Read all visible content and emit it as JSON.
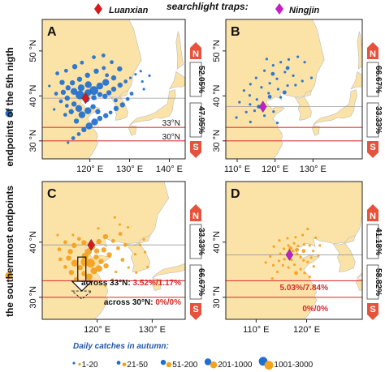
{
  "header": {
    "title": "searchlight traps:",
    "trap_a": "Luanxian",
    "trap_b": "Ningjin"
  },
  "colors": {
    "land": "#fbe3a8",
    "sea": "#ffffff",
    "blue": "#1f6fd0",
    "orange": "#f4a11c",
    "red_marker": "#d7191c",
    "purple_marker": "#c21fc6",
    "line_red": "#e03a3a",
    "n_box": "#e5533d",
    "grey_line": "#9a9a9a",
    "panel_label_bg": "#ececec"
  },
  "row_labels": {
    "top": "endpoints of the 5th nigth",
    "bottom": "the southernmost endpoints"
  },
  "legend": {
    "title": "Daily catches in autumn:",
    "items": [
      "1-20",
      "21-50",
      "51-200",
      "201-1000",
      "1001-3000"
    ]
  },
  "chart_data": [
    {
      "type": "scatter",
      "panel": "A",
      "trap": "Luanxian",
      "trap_pos": [
        118.9,
        39.5
      ],
      "xlim": [
        108,
        144
      ],
      "ylim": [
        26,
        57
      ],
      "x_ticks": [
        120,
        130,
        140
      ],
      "x_tick_labels": [
        "120° E",
        "130° E",
        "140° E"
      ],
      "y_ticks": [
        30,
        40,
        50
      ],
      "y_tick_labels": [
        "30 °N",
        "40 °N",
        "50 °N"
      ],
      "ref_lines": [
        {
          "lat": 33,
          "label": "33°N"
        },
        {
          "lat": 30,
          "label": "30°N"
        }
      ],
      "n_pct": "52.05%",
      "s_pct": "47.95%",
      "marker_color": "blue",
      "points": [
        [
          119.1,
          39.3,
          4
        ],
        [
          117.5,
          40.2,
          5
        ],
        [
          116,
          41,
          4
        ],
        [
          114.5,
          41.8,
          3
        ],
        [
          113,
          43,
          3
        ],
        [
          111.8,
          45,
          2
        ],
        [
          114,
          45.6,
          2
        ],
        [
          116.2,
          46.5,
          3
        ],
        [
          118,
          47.4,
          2
        ],
        [
          121,
          48.6,
          2
        ],
        [
          123.4,
          49,
          2
        ],
        [
          125.5,
          47.5,
          2
        ],
        [
          127.5,
          46,
          3
        ],
        [
          126,
          44,
          3
        ],
        [
          124,
          43,
          4
        ],
        [
          122.5,
          42.2,
          4
        ],
        [
          121,
          41.2,
          5
        ],
        [
          119.5,
          40.7,
          4
        ],
        [
          121,
          39.6,
          3
        ],
        [
          122.5,
          40.3,
          3
        ],
        [
          123.8,
          39.9,
          3
        ],
        [
          124.8,
          40.7,
          3
        ],
        [
          126,
          41.5,
          3
        ],
        [
          127.6,
          42.4,
          3
        ],
        [
          129,
          43.2,
          2
        ],
        [
          130.2,
          44,
          1
        ],
        [
          131.5,
          44.8,
          1
        ],
        [
          132.8,
          45.5,
          1
        ],
        [
          133.2,
          43.2,
          1
        ],
        [
          130.5,
          40.5,
          2
        ],
        [
          129.5,
          39.3,
          2
        ],
        [
          128.2,
          38,
          3
        ],
        [
          126.6,
          37.2,
          3
        ],
        [
          125.2,
          36.3,
          2
        ],
        [
          124,
          35.6,
          3
        ],
        [
          122.5,
          35,
          3
        ],
        [
          121.2,
          34.2,
          4
        ],
        [
          119.8,
          33.3,
          4
        ],
        [
          118.5,
          32.5,
          3
        ],
        [
          117.2,
          31.5,
          2
        ],
        [
          115.8,
          30.6,
          2
        ],
        [
          114.5,
          29.6,
          1
        ],
        [
          116,
          38.2,
          3
        ],
        [
          114.2,
          37.8,
          2
        ],
        [
          112.7,
          38.8,
          2
        ],
        [
          111.5,
          40.5,
          2
        ],
        [
          113.3,
          40.8,
          3
        ],
        [
          114.3,
          39.5,
          3
        ],
        [
          115.3,
          36.5,
          3
        ],
        [
          113.8,
          35.8,
          2
        ],
        [
          116.6,
          34.4,
          3
        ],
        [
          118,
          35.8,
          4
        ],
        [
          119.5,
          36.7,
          4
        ],
        [
          120.8,
          37.6,
          3
        ],
        [
          122,
          36.5,
          3
        ],
        [
          117.2,
          37.2,
          4
        ],
        [
          115.6,
          42.9,
          3
        ],
        [
          117.4,
          43.7,
          3
        ],
        [
          119.4,
          44.6,
          3
        ],
        [
          121.6,
          45.5,
          3
        ],
        [
          123.5,
          46.2,
          2
        ],
        [
          119.6,
          42.5,
          4
        ],
        [
          117.8,
          41.8,
          4
        ],
        [
          135,
          44.5,
          1
        ],
        [
          133.6,
          41.5,
          1
        ],
        [
          124.3,
          44.6,
          2
        ],
        [
          126.5,
          39,
          2
        ],
        [
          111,
          37,
          1
        ],
        [
          109.8,
          42.2,
          1
        ]
      ]
    },
    {
      "type": "scatter",
      "panel": "B",
      "trap": "Ningjin",
      "trap_pos": [
        116.8,
        37.6
      ],
      "xlim": [
        107,
        143
      ],
      "ylim": [
        26,
        57
      ],
      "x_ticks": [
        110,
        120,
        130
      ],
      "x_tick_labels": [
        "110° E",
        "120° E",
        "130° E"
      ],
      "y_ticks": [
        30,
        40,
        50
      ],
      "y_tick_labels": [
        "30 °N",
        "40 °N",
        "50 °N"
      ],
      "n_pct": "66.67%",
      "s_pct": "33.33%",
      "marker_color": "blue",
      "points": [
        [
          111.8,
          41.2,
          1
        ],
        [
          113.5,
          42.6,
          1
        ],
        [
          115,
          44,
          1
        ],
        [
          117.2,
          45.6,
          1
        ],
        [
          119.5,
          46.8,
          1
        ],
        [
          121.5,
          47.5,
          1
        ],
        [
          123.6,
          48.1,
          1
        ],
        [
          126,
          48.7,
          1
        ],
        [
          127.8,
          47.5,
          1
        ],
        [
          122.6,
          45.3,
          1
        ],
        [
          124.8,
          44.5,
          1
        ],
        [
          120.5,
          43.8,
          1
        ],
        [
          118.6,
          42.8,
          1
        ],
        [
          116.4,
          41.9,
          1
        ],
        [
          120.8,
          41.5,
          1
        ],
        [
          123.3,
          42.3,
          1
        ],
        [
          125.4,
          42.4,
          1
        ],
        [
          127.2,
          43.3,
          1
        ],
        [
          129.6,
          44,
          1
        ],
        [
          118.3,
          40.6,
          1
        ],
        [
          121.5,
          39.7,
          1
        ],
        [
          115.2,
          39.2,
          1
        ],
        [
          113.4,
          38.1,
          1
        ],
        [
          114.6,
          36.7,
          1
        ],
        [
          117.2,
          35.6,
          1
        ],
        [
          119.6,
          36.5,
          1
        ],
        [
          112.4,
          36.4,
          1
        ],
        [
          110.6,
          38.6,
          1
        ],
        [
          109.8,
          35.2,
          1
        ],
        [
          113.5,
          34.2,
          1
        ],
        [
          120.6,
          34,
          1
        ],
        [
          118.6,
          39.8,
          2
        ],
        [
          122.5,
          40.8,
          2
        ],
        [
          119.4,
          44.9,
          2
        ],
        [
          123.3,
          46.2,
          2
        ],
        [
          115.7,
          37.6,
          2
        ],
        [
          113.3,
          40.1,
          1
        ],
        [
          117.8,
          48.2,
          1
        ]
      ]
    },
    {
      "type": "scatter",
      "panel": "C",
      "trap": "Luanxian",
      "trap_pos": [
        118.9,
        39.5
      ],
      "xlim": [
        110,
        136
      ],
      "ylim": [
        26,
        51
      ],
      "x_ticks": [
        120,
        130
      ],
      "x_tick_labels": [
        "120° E",
        "130° E"
      ],
      "y_ticks": [
        30,
        40
      ],
      "y_tick_labels": [
        "30 °N",
        "40 °N"
      ],
      "n_pct": "33.33%",
      "s_pct": "66.67%",
      "marker_color": "orange",
      "annotations": [
        {
          "label": "across 33°N:",
          "value": "3.52%/1.17%"
        },
        {
          "label": "across 30°N:",
          "value": "0%/0%"
        }
      ],
      "points": [
        [
          119,
          39.2,
          4
        ],
        [
          118.4,
          38.3,
          4
        ],
        [
          117.8,
          37.5,
          4
        ],
        [
          119.8,
          37.3,
          3
        ],
        [
          120.7,
          36.5,
          3
        ],
        [
          121.6,
          35.7,
          3
        ],
        [
          122.2,
          37.7,
          3
        ],
        [
          121.2,
          38.6,
          3
        ],
        [
          120.3,
          40.1,
          3
        ],
        [
          121.5,
          41,
          3
        ],
        [
          122.9,
          40.2,
          2
        ],
        [
          123.8,
          38.9,
          2
        ],
        [
          124.2,
          41.5,
          2
        ],
        [
          125.1,
          39.5,
          2
        ],
        [
          117.6,
          39.9,
          3
        ],
        [
          116.7,
          40.6,
          2
        ],
        [
          115.8,
          39.4,
          3
        ],
        [
          115.1,
          38.3,
          3
        ],
        [
          114.8,
          37.1,
          3
        ],
        [
          115.9,
          36.2,
          4
        ],
        [
          116.9,
          35.4,
          3
        ],
        [
          117.6,
          34.3,
          3
        ],
        [
          118.5,
          33.7,
          4
        ],
        [
          119.4,
          34.8,
          4
        ],
        [
          120.3,
          35.2,
          4
        ],
        [
          116.2,
          33.2,
          3
        ],
        [
          117.4,
          32.6,
          2
        ],
        [
          115.3,
          34.5,
          3
        ],
        [
          114.2,
          35.5,
          2
        ],
        [
          113.3,
          36.9,
          2
        ],
        [
          113.1,
          38.7,
          2
        ],
        [
          114.2,
          40,
          2
        ],
        [
          115.6,
          41.3,
          1
        ],
        [
          118.8,
          36.2,
          5
        ],
        [
          117.8,
          36.4,
          5
        ],
        [
          119.9,
          38.4,
          3
        ],
        [
          124.6,
          36.8,
          2
        ],
        [
          125.7,
          35.4,
          1
        ],
        [
          126.9,
          37.8,
          1
        ],
        [
          127.8,
          39.5,
          1
        ],
        [
          128.7,
          38.2,
          1
        ],
        [
          129.2,
          35.5,
          1
        ],
        [
          127.1,
          34.5,
          1
        ],
        [
          122.8,
          33.2,
          1
        ],
        [
          121.5,
          32.1,
          1
        ],
        [
          125.6,
          42.7,
          1
        ],
        [
          123.2,
          44.5,
          1
        ],
        [
          120.2,
          42.5,
          1
        ],
        [
          112.8,
          41.3,
          1
        ],
        [
          123.4,
          34.6,
          1
        ],
        [
          128.5,
          40.5,
          1
        ],
        [
          124.1,
          43.2,
          1
        ]
      ]
    },
    {
      "type": "scatter",
      "panel": "D",
      "trap": "Ningjin",
      "trap_pos": [
        116.6,
        37.7
      ],
      "xlim": [
        104,
        131
      ],
      "ylim": [
        26,
        51
      ],
      "x_ticks": [
        110,
        120
      ],
      "x_tick_labels": [
        "110° E",
        "120° E"
      ],
      "y_ticks": [
        30,
        40
      ],
      "y_tick_labels": [
        "30 °N",
        "40 °N"
      ],
      "n_pct": "41.18%",
      "s_pct": "58.82%",
      "marker_color": "orange",
      "annotations": [
        {
          "label": "",
          "value": "5.03%/7.84%"
        },
        {
          "label": "",
          "value": "0%/0%"
        }
      ],
      "points": [
        [
          116.4,
          37.9,
          1
        ],
        [
          117.3,
          38.4,
          1
        ],
        [
          118.1,
          37.8,
          1
        ],
        [
          118.8,
          37.3,
          1
        ],
        [
          119.4,
          36.7,
          1
        ],
        [
          120.2,
          36.4,
          1
        ],
        [
          120.9,
          37.2,
          1
        ],
        [
          121.3,
          38.4,
          1
        ],
        [
          120.6,
          39.4,
          1
        ],
        [
          119.5,
          39.6,
          1
        ],
        [
          118.3,
          39.3,
          1
        ],
        [
          117.5,
          39.8,
          1
        ],
        [
          116.4,
          39.4,
          1
        ],
        [
          115.5,
          38.8,
          1
        ],
        [
          114.8,
          37.9,
          1
        ],
        [
          114.5,
          36.6,
          1
        ],
        [
          115.3,
          35.8,
          1
        ],
        [
          116.4,
          35.4,
          1
        ],
        [
          117.6,
          35.9,
          1
        ],
        [
          118.8,
          35.1,
          1
        ],
        [
          119.6,
          34.4,
          1
        ],
        [
          120.6,
          33.7,
          1
        ],
        [
          114.2,
          34.6,
          1
        ],
        [
          113.4,
          35.8,
          1
        ],
        [
          112.8,
          37.4,
          1
        ],
        [
          113.5,
          39.2,
          1
        ],
        [
          114.6,
          40.3,
          1
        ],
        [
          116.2,
          40.7,
          1
        ],
        [
          117.8,
          40.9,
          1
        ],
        [
          119.2,
          41.3,
          1
        ],
        [
          120.2,
          42.4,
          1
        ],
        [
          121.8,
          40.8,
          1
        ],
        [
          122.6,
          39.4,
          1
        ],
        [
          115.6,
          36.9,
          1
        ],
        [
          117,
          36.8,
          1
        ],
        [
          118.1,
          38.6,
          2
        ],
        [
          116.8,
          38.9,
          2
        ],
        [
          119.4,
          38.4,
          2
        ],
        [
          117.9,
          34.4,
          2
        ],
        [
          121.4,
          35.6,
          1
        ],
        [
          113.2,
          33.4,
          1
        ],
        [
          111.9,
          36.3,
          1
        ],
        [
          122.3,
          37.6,
          1
        ]
      ]
    }
  ]
}
